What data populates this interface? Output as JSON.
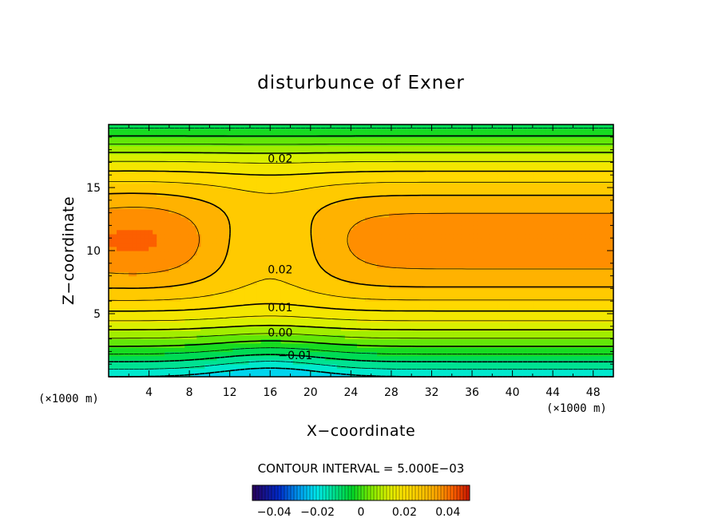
{
  "chart_data": {
    "type": "heatmap",
    "title": "disturbunce of Exner",
    "xlabel": "X−coordinate",
    "ylabel": "Z−coordinate",
    "x_unit": "(×1000 m)",
    "x_unit_right": "(×1000 m)",
    "xlim": [
      0,
      50
    ],
    "ylim": [
      0,
      20
    ],
    "xticks": [
      "4",
      "8",
      "12",
      "16",
      "20",
      "24",
      "28",
      "32",
      "36",
      "40",
      "44",
      "48"
    ],
    "yticks": [
      "5",
      "10",
      "15"
    ],
    "contour_interval_text": "CONTOUR INTERVAL = 5.000E−03",
    "contour_labels": [
      {
        "value": "0.02",
        "x": 17,
        "y": 17.3
      },
      {
        "value": "0.02",
        "x": 17,
        "y": 8.5
      },
      {
        "value": "0.01",
        "x": 17,
        "y": 5.5
      },
      {
        "value": "0.00",
        "x": 17,
        "y": 3.5
      },
      {
        "value": "−0.01",
        "x": 18.5,
        "y": 1.7
      }
    ],
    "colorbar": {
      "range": [
        -0.05,
        0.05
      ],
      "ticks": [
        "−0.04",
        "−0.02",
        "0",
        "0.02",
        "0.04"
      ],
      "tick_values": [
        -0.04,
        -0.02,
        0,
        0.02,
        0.04
      ]
    },
    "field_summary": {
      "bottom_value": -0.02,
      "max_value": 0.038,
      "max_locations": [
        [
          3,
          11
        ],
        [
          34,
          11
        ],
        [
          44,
          11
        ]
      ],
      "saddle_x": 16
    }
  }
}
